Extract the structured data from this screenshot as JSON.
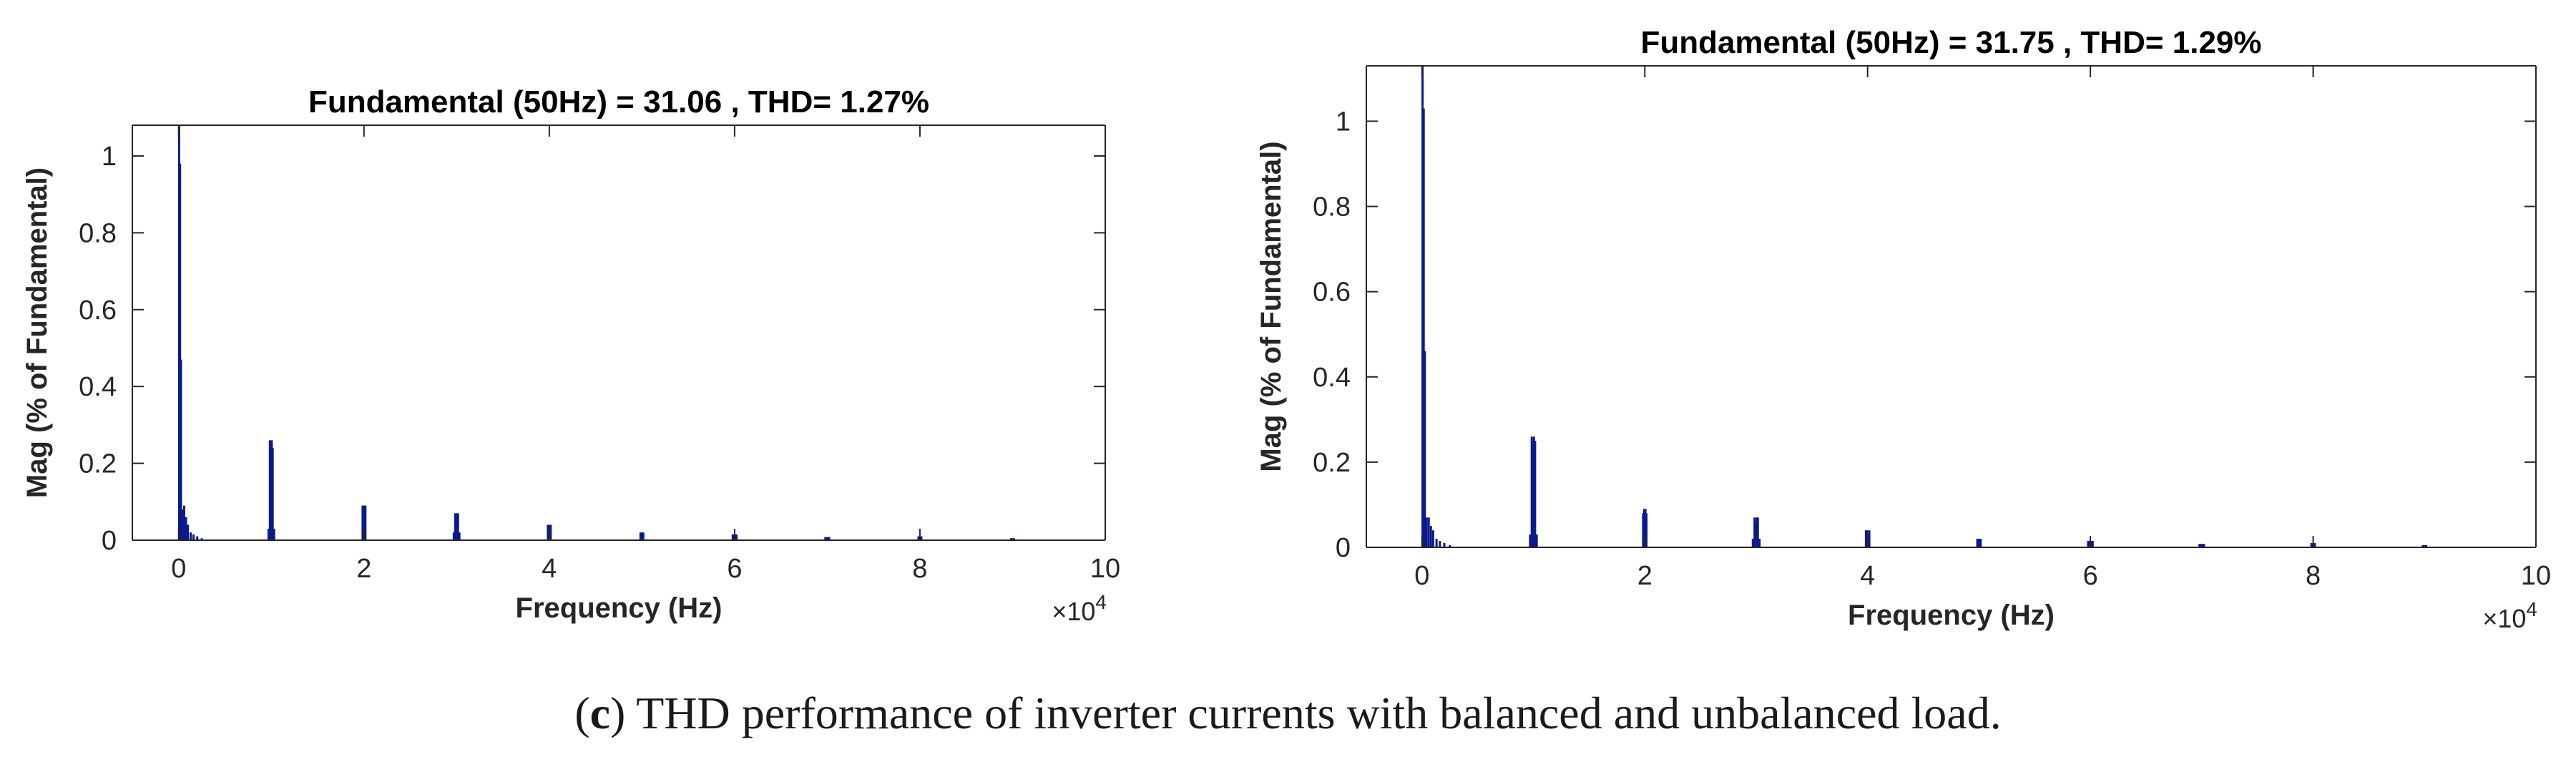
{
  "caption": {
    "label": "c",
    "open": "(",
    "close": ")",
    "text": " THD performance of inverter currents with balanced and unbalanced load."
  },
  "colors": {
    "series": "#0a1a8c",
    "axis": "#262626",
    "background": "#ffffff"
  },
  "chart_data": [
    {
      "type": "bar",
      "title": "Fundamental (50Hz) = 31.06 , THD= 1.27%",
      "xlabel": "Frequency (Hz)",
      "ylabel": "Mag (% of Fundamental)",
      "xlim": [
        -5000,
        100000
      ],
      "ylim": [
        0,
        1.08
      ],
      "x_multiplier_label": "×10",
      "x_multiplier_exponent": "4",
      "xticks": [
        0,
        20000,
        40000,
        60000,
        80000,
        100000
      ],
      "xtick_labels": [
        "0",
        "2",
        "4",
        "6",
        "8",
        "10"
      ],
      "yticks": [
        0,
        0.2,
        0.4,
        0.6,
        0.8,
        1
      ],
      "ytick_labels": [
        "0",
        "0.2",
        "0.4",
        "0.6",
        "0.8",
        "1"
      ],
      "grid": false,
      "series": [
        {
          "x": [
            50,
            150,
            250,
            400,
            600,
            800,
            1000,
            1300,
            1600,
            2000,
            2500,
            9700,
            9850,
            9950,
            10050,
            10150,
            10300,
            19850,
            19950,
            20050,
            20150,
            29700,
            29850,
            29950,
            30050,
            30150,
            30300,
            39850,
            39950,
            40050,
            40150,
            49850,
            49950,
            50050,
            50150,
            59800,
            59950,
            60050,
            60200,
            69800,
            69950,
            70050,
            70200,
            79850,
            79950,
            80050,
            80150,
            89850,
            89950,
            90050,
            90150
          ],
          "y": [
            1.08,
            0.98,
            0.47,
            0.08,
            0.09,
            0.06,
            0.04,
            0.02,
            0.015,
            0.01,
            0.005,
            0.03,
            0.26,
            0.25,
            0.26,
            0.24,
            0.03,
            0.09,
            0.09,
            0.09,
            0.09,
            0.02,
            0.07,
            0.06,
            0.07,
            0.07,
            0.02,
            0.04,
            0.04,
            0.03,
            0.04,
            0.02,
            0.02,
            0.02,
            0.02,
            0.015,
            0.015,
            0.015,
            0.015,
            0.008,
            0.008,
            0.008,
            0.008,
            0.01,
            0.01,
            0.01,
            0.01,
            0.005,
            0.005,
            0.005,
            0.005
          ]
        }
      ]
    },
    {
      "type": "bar",
      "title": "Fundamental (50Hz) = 31.75 , THD= 1.29%",
      "xlabel": "Frequency (Hz)",
      "ylabel": "Mag (% of Fundamental)",
      "xlim": [
        -5000,
        100000
      ],
      "ylim": [
        0,
        1.13
      ],
      "x_multiplier_label": "×10",
      "x_multiplier_exponent": "4",
      "xticks": [
        0,
        20000,
        40000,
        60000,
        80000,
        100000
      ],
      "xtick_labels": [
        "0",
        "2",
        "4",
        "6",
        "8",
        "10"
      ],
      "yticks": [
        0,
        0.2,
        0.4,
        0.6,
        0.8,
        1
      ],
      "ytick_labels": [
        "0",
        "0.2",
        "0.4",
        "0.6",
        "0.8",
        "1"
      ],
      "grid": false,
      "series": [
        {
          "x": [
            50,
            150,
            250,
            400,
            600,
            800,
            1000,
            1300,
            1600,
            2000,
            2500,
            9700,
            9850,
            9950,
            10050,
            10150,
            10300,
            19850,
            19950,
            20050,
            20150,
            29700,
            29850,
            29950,
            30050,
            30150,
            30300,
            39850,
            39950,
            40050,
            40150,
            49850,
            49950,
            50050,
            50150,
            59800,
            59950,
            60050,
            60200,
            69800,
            69950,
            70050,
            70200,
            79850,
            79950,
            80050,
            80150,
            89850,
            89950,
            90050,
            90150
          ],
          "y": [
            1.13,
            1.03,
            0.46,
            0.07,
            0.07,
            0.05,
            0.04,
            0.02,
            0.015,
            0.01,
            0.005,
            0.03,
            0.26,
            0.25,
            0.26,
            0.25,
            0.03,
            0.08,
            0.09,
            0.09,
            0.08,
            0.02,
            0.07,
            0.06,
            0.07,
            0.07,
            0.02,
            0.04,
            0.04,
            0.03,
            0.04,
            0.02,
            0.02,
            0.02,
            0.02,
            0.015,
            0.015,
            0.015,
            0.015,
            0.008,
            0.008,
            0.008,
            0.008,
            0.01,
            0.01,
            0.01,
            0.01,
            0.005,
            0.005,
            0.005,
            0.005
          ]
        }
      ]
    }
  ]
}
